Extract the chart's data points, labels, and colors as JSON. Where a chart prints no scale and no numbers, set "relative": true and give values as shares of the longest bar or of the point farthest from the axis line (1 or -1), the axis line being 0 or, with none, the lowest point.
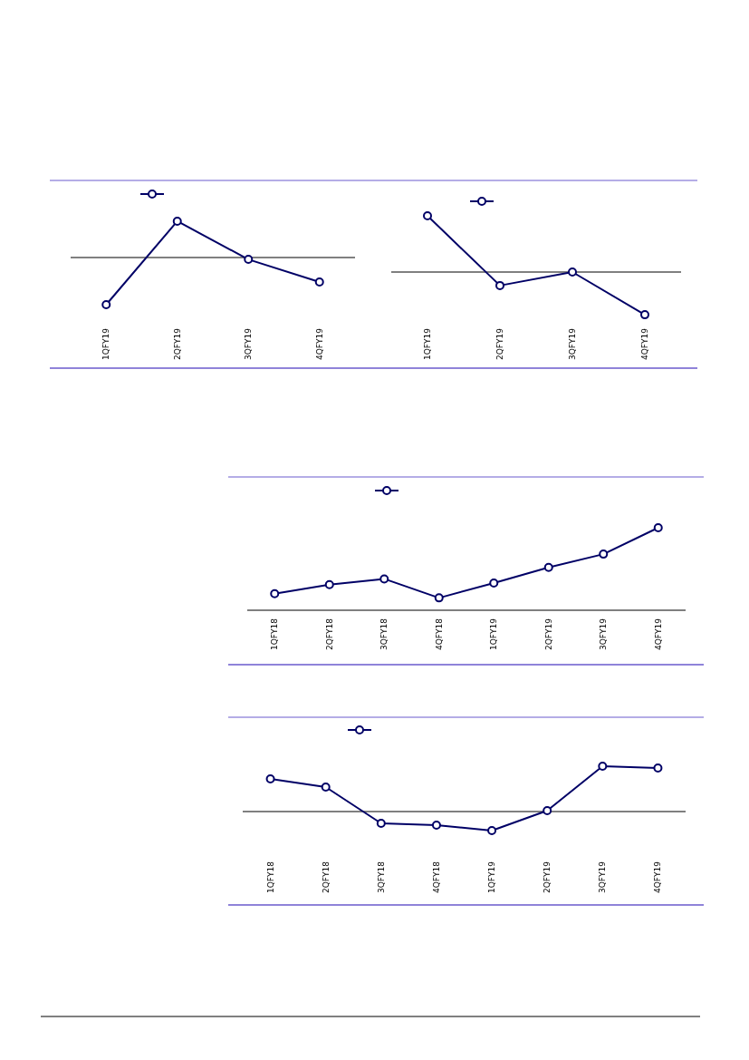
{
  "chart_data": [
    {
      "type": "line",
      "relative": true,
      "marker": "circle",
      "categories": [
        "1QFY19",
        "2QFY19",
        "3QFY19",
        "4QFY19"
      ],
      "series": [
        {
          "color": "#000066",
          "values": [
            -1,
            0.77,
            -0.04,
            -0.52
          ]
        }
      ]
    },
    {
      "type": "line",
      "relative": true,
      "marker": "circle",
      "categories": [
        "1QFY19",
        "2QFY19",
        "3QFY19",
        "4QFY19"
      ],
      "series": [
        {
          "color": "#000066",
          "values": [
            1,
            -0.24,
            0,
            -0.76
          ]
        }
      ]
    },
    {
      "type": "line",
      "relative": true,
      "marker": "circle",
      "categories": [
        "1QFY18",
        "2QFY18",
        "3QFY18",
        "4QFY18",
        "1QFY19",
        "2QFY19",
        "3QFY19",
        "4QFY19"
      ],
      "series": [
        {
          "color": "#000066",
          "values": [
            0.2,
            0.31,
            0.38,
            0.15,
            0.33,
            0.52,
            0.68,
            1
          ]
        }
      ]
    },
    {
      "type": "line",
      "relative": true,
      "marker": "circle",
      "categories": [
        "1QFY18",
        "2QFY18",
        "3QFY18",
        "4QFY18",
        "1QFY19",
        "2QFY19",
        "3QFY19",
        "4QFY19"
      ],
      "series": [
        {
          "color": "#000066",
          "values": [
            0.72,
            0.54,
            -0.26,
            -0.3,
            -0.42,
            0.02,
            1,
            0.96
          ]
        }
      ]
    }
  ]
}
